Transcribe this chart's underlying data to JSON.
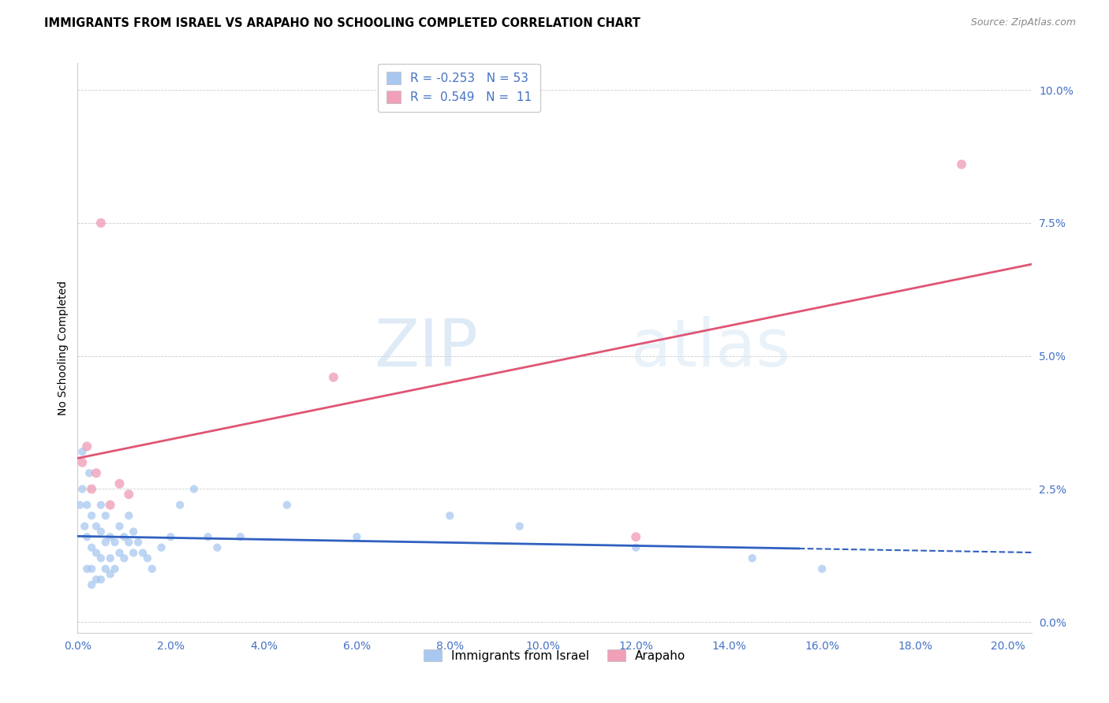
{
  "title": "IMMIGRANTS FROM ISRAEL VS ARAPAHO NO SCHOOLING COMPLETED CORRELATION CHART",
  "source": "Source: ZipAtlas.com",
  "ylabel": "No Schooling Completed",
  "xlim": [
    0.0,
    0.205
  ],
  "ylim": [
    -0.002,
    0.105
  ],
  "xticks": [
    0.0,
    0.02,
    0.04,
    0.06,
    0.08,
    0.1,
    0.12,
    0.14,
    0.16,
    0.18,
    0.2
  ],
  "yticks": [
    0.0,
    0.025,
    0.05,
    0.075,
    0.1
  ],
  "blue_color": "#a8c8f0",
  "pink_color": "#f0a0b8",
  "line_blue": "#3060c0",
  "line_pink": "#e05575",
  "watermark_zip": "ZIP",
  "watermark_atlas": "atlas",
  "israel_x": [
    0.0005,
    0.001,
    0.001,
    0.0015,
    0.002,
    0.002,
    0.002,
    0.0025,
    0.003,
    0.003,
    0.003,
    0.003,
    0.004,
    0.004,
    0.004,
    0.005,
    0.005,
    0.005,
    0.005,
    0.006,
    0.006,
    0.006,
    0.007,
    0.007,
    0.007,
    0.008,
    0.008,
    0.009,
    0.009,
    0.01,
    0.01,
    0.011,
    0.011,
    0.012,
    0.012,
    0.013,
    0.014,
    0.015,
    0.016,
    0.018,
    0.02,
    0.022,
    0.025,
    0.028,
    0.03,
    0.035,
    0.045,
    0.06,
    0.08,
    0.095,
    0.12,
    0.145,
    0.16
  ],
  "israel_y": [
    0.022,
    0.032,
    0.025,
    0.018,
    0.022,
    0.016,
    0.01,
    0.028,
    0.02,
    0.014,
    0.01,
    0.007,
    0.018,
    0.013,
    0.008,
    0.022,
    0.017,
    0.012,
    0.008,
    0.02,
    0.015,
    0.01,
    0.016,
    0.012,
    0.009,
    0.015,
    0.01,
    0.018,
    0.013,
    0.016,
    0.012,
    0.02,
    0.015,
    0.017,
    0.013,
    0.015,
    0.013,
    0.012,
    0.01,
    0.014,
    0.016,
    0.022,
    0.025,
    0.016,
    0.014,
    0.016,
    0.022,
    0.016,
    0.02,
    0.018,
    0.014,
    0.012,
    0.01
  ],
  "arapaho_x": [
    0.001,
    0.002,
    0.003,
    0.004,
    0.005,
    0.007,
    0.009,
    0.011,
    0.055,
    0.12,
    0.19
  ],
  "arapaho_y": [
    0.03,
    0.033,
    0.025,
    0.028,
    0.075,
    0.022,
    0.026,
    0.024,
    0.046,
    0.016,
    0.086
  ],
  "israel_sizes": 55,
  "arapaho_sizes": 75,
  "title_fontsize": 10.5,
  "axis_label_fontsize": 10,
  "tick_fontsize": 10,
  "legend_fontsize": 11
}
